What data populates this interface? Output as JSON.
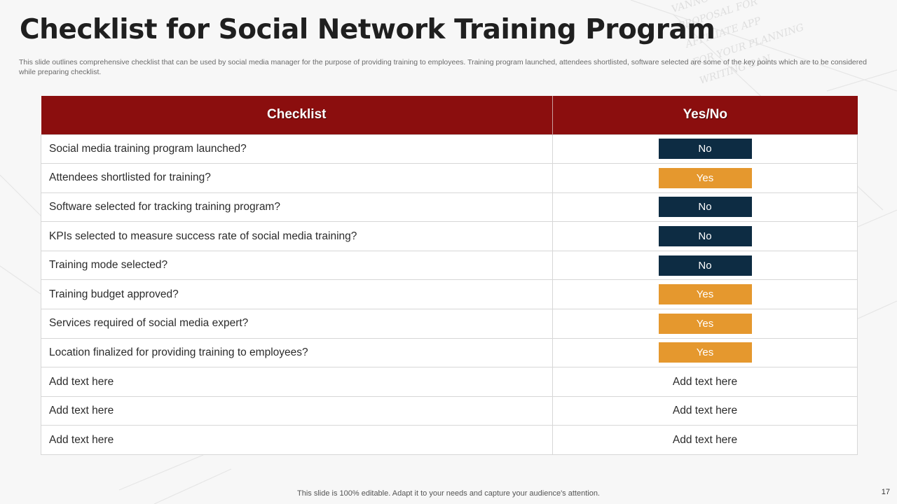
{
  "slide": {
    "title": "Checklist for Social Network Training Program",
    "subtitle": "This slide outlines comprehensive checklist that can be used by social media manager for the purpose of providing training to employees. Training program launched, attendees shortlisted, software selected are some of the key points which are to be considered while preparing checklist.",
    "footer": "This slide is 100% editable. Adapt it to your needs and capture your audience's attention.",
    "page_number": "17"
  },
  "colors": {
    "header": "#8b0e0e",
    "no_badge": "#0d2c43",
    "yes_badge": "#e5982e"
  },
  "table": {
    "headers": [
      "Checklist",
      "Yes/No"
    ],
    "rows": [
      {
        "item": "Social media training program launched?",
        "status": "No"
      },
      {
        "item": "Attendees shortlisted for training?",
        "status": "Yes"
      },
      {
        "item": "Software selected for tracking training program?",
        "status": "No"
      },
      {
        "item": "KPIs selected to measure success rate of social media training?",
        "status": "No"
      },
      {
        "item": "Training mode selected?",
        "status": "No"
      },
      {
        "item": "Training budget approved?",
        "status": "Yes"
      },
      {
        "item": "Services required of social media expert?",
        "status": "Yes"
      },
      {
        "item": "Location finalized for providing training to employees?",
        "status": "Yes"
      },
      {
        "item": "Add text here",
        "status": "Add text here"
      },
      {
        "item": "Add text here",
        "status": "Add text here"
      },
      {
        "item": "Add text here",
        "status": "Add text here"
      }
    ]
  }
}
